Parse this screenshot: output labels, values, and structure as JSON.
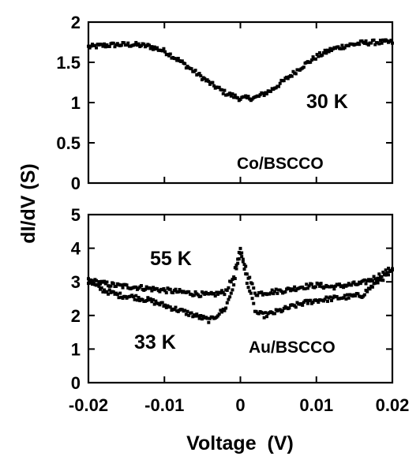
{
  "chart_data": {
    "type": "scatter",
    "xlabel": "Voltage  (V)",
    "ylabel": "dI/dV (S)",
    "x_ticks": [
      "-0.02",
      "-0.01",
      "0",
      "0.01",
      "0.02"
    ],
    "x_tick_values": [
      -0.02,
      -0.01,
      0,
      0.01,
      0.02
    ],
    "xlim": [
      -0.02,
      0.02
    ],
    "grid": false,
    "panels": [
      {
        "position": "top",
        "ylim": [
          0,
          2
        ],
        "y_ticks": [
          "0",
          "0.5",
          "1",
          "1.5",
          "2"
        ],
        "y_tick_values": [
          0,
          0.5,
          1,
          1.5,
          2
        ],
        "annotations": [
          {
            "text": "30  K",
            "x": 0.0135,
            "y": 1.05
          },
          {
            "text": "Co/BSCCO",
            "x": 0.0095,
            "y": 0.28
          }
        ],
        "series": [
          {
            "label": "30 K",
            "x": [
              -0.02,
              -0.018,
              -0.016,
              -0.014,
              -0.012,
              -0.01,
              -0.008,
              -0.006,
              -0.004,
              -0.002,
              0,
              0.002,
              0.004,
              0.006,
              0.008,
              0.01,
              0.012,
              0.014,
              0.016,
              0.018,
              0.02
            ],
            "y": [
              1.69,
              1.71,
              1.72,
              1.72,
              1.7,
              1.64,
              1.52,
              1.38,
              1.24,
              1.12,
              1.05,
              1.06,
              1.15,
              1.29,
              1.44,
              1.57,
              1.66,
              1.71,
              1.74,
              1.75,
              1.75
            ]
          }
        ]
      },
      {
        "position": "bottom",
        "ylim": [
          0,
          5
        ],
        "y_ticks": [
          "0",
          "1",
          "2",
          "3",
          "4",
          "5"
        ],
        "y_tick_values": [
          0,
          1,
          2,
          3,
          4,
          5
        ],
        "annotations": [
          {
            "text": "55  K",
            "x": -0.0135,
            "y": 3.5
          },
          {
            "text": "33  K",
            "x": -0.0155,
            "y": 1.1
          },
          {
            "text": "Au/BSCCO",
            "x": 0.0025,
            "y": 1.1
          }
        ],
        "series": [
          {
            "label": "55 K",
            "x": [
              -0.02,
              -0.018,
              -0.016,
              -0.014,
              -0.012,
              -0.01,
              -0.008,
              -0.006,
              -0.004,
              -0.002,
              -0.001,
              0,
              0.001,
              0.002,
              0.004,
              0.006,
              0.008,
              0.01,
              0.012,
              0.014,
              0.016,
              0.018,
              0.02
            ],
            "y": [
              3.05,
              2.95,
              2.88,
              2.85,
              2.8,
              2.75,
              2.7,
              2.65,
              2.6,
              2.7,
              3.1,
              3.95,
              3.2,
              2.65,
              2.7,
              2.75,
              2.85,
              2.9,
              2.85,
              2.9,
              2.95,
              3.15,
              3.4
            ]
          },
          {
            "label": "33 K",
            "x": [
              -0.02,
              -0.018,
              -0.016,
              -0.014,
              -0.012,
              -0.01,
              -0.008,
              -0.006,
              -0.004,
              -0.002,
              -0.001,
              0,
              0.001,
              0.002,
              0.003,
              0.004,
              0.006,
              0.008,
              0.01,
              0.012,
              0.014,
              0.016,
              0.018,
              0.02
            ],
            "y": [
              3.0,
              2.75,
              2.6,
              2.55,
              2.45,
              2.3,
              2.15,
              2.0,
              1.85,
              2.2,
              2.8,
              3.9,
              2.9,
              2.1,
              2.0,
              2.05,
              2.2,
              2.35,
              2.45,
              2.5,
              2.55,
              2.6,
              3.0,
              3.3
            ]
          }
        ]
      }
    ]
  }
}
